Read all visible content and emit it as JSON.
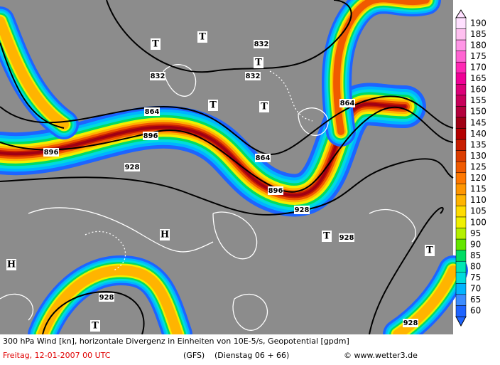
{
  "legend": {
    "levels": [
      {
        "label": "190",
        "color": "#ffe0ff"
      },
      {
        "label": "185",
        "color": "#ffc0f0"
      },
      {
        "label": "180",
        "color": "#ff96e6"
      },
      {
        "label": "175",
        "color": "#ff64d2"
      },
      {
        "label": "170",
        "color": "#ff28b4"
      },
      {
        "label": "165",
        "color": "#f00096"
      },
      {
        "label": "160",
        "color": "#dc0078"
      },
      {
        "label": "155",
        "color": "#c8005a"
      },
      {
        "label": "150",
        "color": "#b4003c"
      },
      {
        "label": "145",
        "color": "#a00014"
      },
      {
        "label": "140",
        "color": "#b40000"
      },
      {
        "label": "135",
        "color": "#c81e00"
      },
      {
        "label": "130",
        "color": "#dc3c00"
      },
      {
        "label": "125",
        "color": "#f05a00"
      },
      {
        "label": "120",
        "color": "#ff7800"
      },
      {
        "label": "115",
        "color": "#ff9600"
      },
      {
        "label": "110",
        "color": "#ffb400"
      },
      {
        "label": "105",
        "color": "#ffdc00"
      },
      {
        "label": "100",
        "color": "#f0f000"
      },
      {
        "label": "95",
        "color": "#b4f000"
      },
      {
        "label": "90",
        "color": "#64e600"
      },
      {
        "label": "85",
        "color": "#00dc64"
      },
      {
        "label": "80",
        "color": "#00e6b4"
      },
      {
        "label": "75",
        "color": "#00dcdc"
      },
      {
        "label": "70",
        "color": "#00b4ff"
      },
      {
        "label": "65",
        "color": "#3c8cff"
      },
      {
        "label": "60",
        "color": "#1e64ff"
      }
    ]
  },
  "map": {
    "contour_labels": [
      "832",
      "832",
      "832",
      "864",
      "864",
      "864",
      "896",
      "896",
      "896",
      "928",
      "928",
      "928",
      "928",
      "928"
    ],
    "pressure_marks": [
      "T",
      "T",
      "T",
      "T",
      "T",
      "T",
      "T",
      "T",
      "H",
      "H"
    ]
  },
  "footer": {
    "description": "300 hPa Wind [kn], horizontale Divergenz in Einheiten von 10E-5/s, Geopotential [gpdm]",
    "date": "Freitag, 12-01-2007  00 UTC",
    "model": "(GFS)",
    "run": "(Dienstag 06 + 66)",
    "credit": "© www.wetter3.de"
  }
}
